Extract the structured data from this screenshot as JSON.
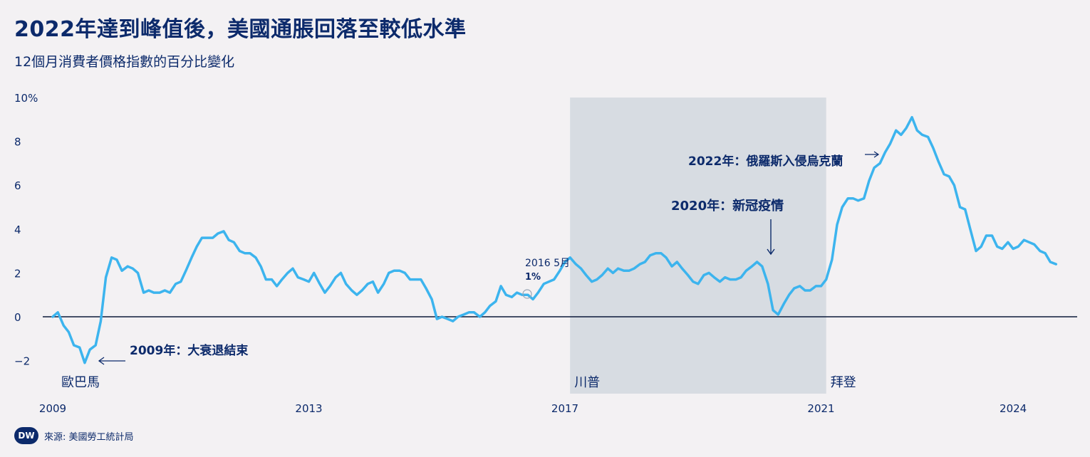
{
  "title": "2022年達到峰值後，美國通脹回落至較低水準",
  "subtitle": "12個月消費者價格指數的百分比變化",
  "source": "來源: 美國勞工統計局",
  "logo_text": "DW",
  "colors": {
    "line": "#3cb4ee",
    "text": "#0c2a6b",
    "shade": "#d7dce2",
    "zero_line": "#0c1a3a",
    "background": "#f3f1f3"
  },
  "chart_data": {
    "type": "line",
    "y_ticks": [
      "10%",
      "8",
      "6",
      "4",
      "2",
      "0",
      "−2"
    ],
    "y_tick_values": [
      10,
      8,
      6,
      4,
      2,
      0,
      -2
    ],
    "x_ticks": [
      "2009",
      "2013",
      "2017",
      "2021",
      "2024"
    ],
    "x_tick_values": [
      2009,
      2013,
      2017,
      2021,
      2024
    ],
    "ylim": [
      -3.5,
      10
    ],
    "xlim": [
      2009,
      2025
    ],
    "shaded_period": {
      "start": 2017.08,
      "end": 2021.08,
      "label": "川普"
    },
    "presidents": [
      {
        "label": "歐巴馬",
        "x": 2009.08
      },
      {
        "label": "川普",
        "x": 2017.08
      },
      {
        "label": "拜登",
        "x": 2021.08
      }
    ],
    "annotations": [
      {
        "text": "2009年：大衰退結束",
        "x": 2009.5,
        "y": -2.0,
        "arrow": "←"
      },
      {
        "text": "2016 5月",
        "x": 2016.33,
        "y": 1.0,
        "value": "1%"
      },
      {
        "text": "2020年：新冠疫情",
        "x": 2020.2,
        "y": 2.5,
        "arrow": "↓"
      },
      {
        "text": "2022年：俄羅斯入侵烏克蘭",
        "x": 2022.15,
        "y": 7.9,
        "arrow": "→"
      }
    ],
    "series": [
      {
        "values": [
          [
            2009.0,
            0.0
          ],
          [
            2009.08,
            0.2
          ],
          [
            2009.17,
            -0.4
          ],
          [
            2009.25,
            -0.7
          ],
          [
            2009.33,
            -1.3
          ],
          [
            2009.42,
            -1.4
          ],
          [
            2009.5,
            -2.1
          ],
          [
            2009.58,
            -1.5
          ],
          [
            2009.67,
            -1.3
          ],
          [
            2009.75,
            -0.2
          ],
          [
            2009.83,
            1.8
          ],
          [
            2009.92,
            2.7
          ],
          [
            2010.0,
            2.6
          ],
          [
            2010.08,
            2.1
          ],
          [
            2010.17,
            2.3
          ],
          [
            2010.25,
            2.2
          ],
          [
            2010.33,
            2.0
          ],
          [
            2010.42,
            1.1
          ],
          [
            2010.5,
            1.2
          ],
          [
            2010.58,
            1.1
          ],
          [
            2010.67,
            1.1
          ],
          [
            2010.75,
            1.2
          ],
          [
            2010.83,
            1.1
          ],
          [
            2010.92,
            1.5
          ],
          [
            2011.0,
            1.6
          ],
          [
            2011.08,
            2.1
          ],
          [
            2011.17,
            2.7
          ],
          [
            2011.25,
            3.2
          ],
          [
            2011.33,
            3.6
          ],
          [
            2011.42,
            3.6
          ],
          [
            2011.5,
            3.6
          ],
          [
            2011.58,
            3.8
          ],
          [
            2011.67,
            3.9
          ],
          [
            2011.75,
            3.5
          ],
          [
            2011.83,
            3.4
          ],
          [
            2011.92,
            3.0
          ],
          [
            2012.0,
            2.9
          ],
          [
            2012.08,
            2.9
          ],
          [
            2012.17,
            2.7
          ],
          [
            2012.25,
            2.3
          ],
          [
            2012.33,
            1.7
          ],
          [
            2012.42,
            1.7
          ],
          [
            2012.5,
            1.4
          ],
          [
            2012.58,
            1.7
          ],
          [
            2012.67,
            2.0
          ],
          [
            2012.75,
            2.2
          ],
          [
            2012.83,
            1.8
          ],
          [
            2012.92,
            1.7
          ],
          [
            2013.0,
            1.6
          ],
          [
            2013.08,
            2.0
          ],
          [
            2013.17,
            1.5
          ],
          [
            2013.25,
            1.1
          ],
          [
            2013.33,
            1.4
          ],
          [
            2013.42,
            1.8
          ],
          [
            2013.5,
            2.0
          ],
          [
            2013.58,
            1.5
          ],
          [
            2013.67,
            1.2
          ],
          [
            2013.75,
            1.0
          ],
          [
            2013.83,
            1.2
          ],
          [
            2013.92,
            1.5
          ],
          [
            2014.0,
            1.6
          ],
          [
            2014.08,
            1.1
          ],
          [
            2014.17,
            1.5
          ],
          [
            2014.25,
            2.0
          ],
          [
            2014.33,
            2.1
          ],
          [
            2014.42,
            2.1
          ],
          [
            2014.5,
            2.0
          ],
          [
            2014.58,
            1.7
          ],
          [
            2014.67,
            1.7
          ],
          [
            2014.75,
            1.7
          ],
          [
            2014.83,
            1.3
          ],
          [
            2014.92,
            0.8
          ],
          [
            2015.0,
            -0.1
          ],
          [
            2015.08,
            0.0
          ],
          [
            2015.17,
            -0.1
          ],
          [
            2015.25,
            -0.2
          ],
          [
            2015.33,
            0.0
          ],
          [
            2015.42,
            0.1
          ],
          [
            2015.5,
            0.2
          ],
          [
            2015.58,
            0.2
          ],
          [
            2015.67,
            0.0
          ],
          [
            2015.75,
            0.2
          ],
          [
            2015.83,
            0.5
          ],
          [
            2015.92,
            0.7
          ],
          [
            2016.0,
            1.4
          ],
          [
            2016.08,
            1.0
          ],
          [
            2016.17,
            0.9
          ],
          [
            2016.25,
            1.1
          ],
          [
            2016.33,
            1.0
          ],
          [
            2016.42,
            1.0
          ],
          [
            2016.5,
            0.8
          ],
          [
            2016.58,
            1.1
          ],
          [
            2016.67,
            1.5
          ],
          [
            2016.75,
            1.6
          ],
          [
            2016.83,
            1.7
          ],
          [
            2016.92,
            2.1
          ],
          [
            2017.0,
            2.5
          ],
          [
            2017.08,
            2.7
          ],
          [
            2017.17,
            2.4
          ],
          [
            2017.25,
            2.2
          ],
          [
            2017.33,
            1.9
          ],
          [
            2017.42,
            1.6
          ],
          [
            2017.5,
            1.7
          ],
          [
            2017.58,
            1.9
          ],
          [
            2017.67,
            2.2
          ],
          [
            2017.75,
            2.0
          ],
          [
            2017.83,
            2.2
          ],
          [
            2017.92,
            2.1
          ],
          [
            2018.0,
            2.1
          ],
          [
            2018.08,
            2.2
          ],
          [
            2018.17,
            2.4
          ],
          [
            2018.25,
            2.5
          ],
          [
            2018.33,
            2.8
          ],
          [
            2018.42,
            2.9
          ],
          [
            2018.5,
            2.9
          ],
          [
            2018.58,
            2.7
          ],
          [
            2018.67,
            2.3
          ],
          [
            2018.75,
            2.5
          ],
          [
            2018.83,
            2.2
          ],
          [
            2018.92,
            1.9
          ],
          [
            2019.0,
            1.6
          ],
          [
            2019.08,
            1.5
          ],
          [
            2019.17,
            1.9
          ],
          [
            2019.25,
            2.0
          ],
          [
            2019.33,
            1.8
          ],
          [
            2019.42,
            1.6
          ],
          [
            2019.5,
            1.8
          ],
          [
            2019.58,
            1.7
          ],
          [
            2019.67,
            1.7
          ],
          [
            2019.75,
            1.8
          ],
          [
            2019.83,
            2.1
          ],
          [
            2019.92,
            2.3
          ],
          [
            2020.0,
            2.5
          ],
          [
            2020.08,
            2.3
          ],
          [
            2020.17,
            1.5
          ],
          [
            2020.25,
            0.3
          ],
          [
            2020.33,
            0.1
          ],
          [
            2020.42,
            0.6
          ],
          [
            2020.5,
            1.0
          ],
          [
            2020.58,
            1.3
          ],
          [
            2020.67,
            1.4
          ],
          [
            2020.75,
            1.2
          ],
          [
            2020.83,
            1.2
          ],
          [
            2020.92,
            1.4
          ],
          [
            2021.0,
            1.4
          ],
          [
            2021.08,
            1.7
          ],
          [
            2021.17,
            2.6
          ],
          [
            2021.25,
            4.2
          ],
          [
            2021.33,
            5.0
          ],
          [
            2021.42,
            5.4
          ],
          [
            2021.5,
            5.4
          ],
          [
            2021.58,
            5.3
          ],
          [
            2021.67,
            5.4
          ],
          [
            2021.75,
            6.2
          ],
          [
            2021.83,
            6.8
          ],
          [
            2021.92,
            7.0
          ],
          [
            2022.0,
            7.5
          ],
          [
            2022.08,
            7.9
          ],
          [
            2022.17,
            8.5
          ],
          [
            2022.25,
            8.3
          ],
          [
            2022.33,
            8.6
          ],
          [
            2022.42,
            9.1
          ],
          [
            2022.5,
            8.5
          ],
          [
            2022.58,
            8.3
          ],
          [
            2022.67,
            8.2
          ],
          [
            2022.75,
            7.7
          ],
          [
            2022.83,
            7.1
          ],
          [
            2022.92,
            6.5
          ],
          [
            2023.0,
            6.4
          ],
          [
            2023.08,
            6.0
          ],
          [
            2023.17,
            5.0
          ],
          [
            2023.25,
            4.9
          ],
          [
            2023.33,
            4.0
          ],
          [
            2023.42,
            3.0
          ],
          [
            2023.5,
            3.2
          ],
          [
            2023.58,
            3.7
          ],
          [
            2023.67,
            3.7
          ],
          [
            2023.75,
            3.2
          ],
          [
            2023.83,
            3.1
          ],
          [
            2023.92,
            3.4
          ],
          [
            2024.0,
            3.1
          ],
          [
            2024.08,
            3.2
          ],
          [
            2024.17,
            3.5
          ],
          [
            2024.25,
            3.4
          ],
          [
            2024.33,
            3.3
          ],
          [
            2024.42,
            3.0
          ],
          [
            2024.5,
            2.9
          ],
          [
            2024.58,
            2.5
          ],
          [
            2024.67,
            2.4
          ]
        ]
      }
    ]
  }
}
